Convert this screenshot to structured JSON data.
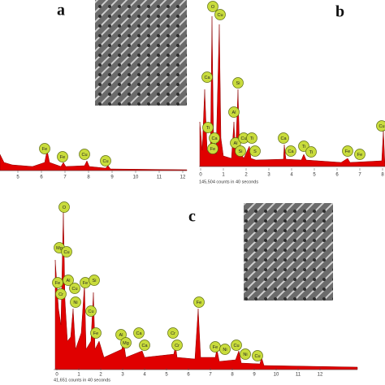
{
  "panels": [
    {
      "label": "a",
      "tags": [
        "Fe",
        "Fe",
        "Cu",
        "Cu"
      ],
      "x_ticks": [
        "5",
        "6",
        "7",
        "8",
        "9",
        "10",
        "11",
        "12"
      ]
    },
    {
      "label": "b",
      "tags": [
        "O",
        "Cu",
        "Ca",
        "Si",
        "Al",
        "Ti",
        "Ca",
        "Fe",
        "Al",
        "Cu",
        "Ti",
        "Si",
        "S",
        "Ca",
        "Ca",
        "Ti",
        "Ti",
        "Fe",
        "Fe",
        "Cu"
      ],
      "x_ticks": [
        "0",
        "1",
        "2",
        "3",
        "4",
        "5",
        "6",
        "7",
        "8"
      ],
      "caption": "145,504 counts in 40 seconds"
    },
    {
      "label": "c",
      "tags": [
        "O",
        "Mg",
        "Cu",
        "Fe",
        "Al",
        "Cr",
        "Cu",
        "Ni",
        "Fe",
        "Si",
        "Cu",
        "Fe",
        "Al",
        "Ca",
        "Mg",
        "Ca",
        "Cr",
        "Cr",
        "Fe",
        "Fe",
        "Ni",
        "Cu",
        "Ni",
        "Cu"
      ],
      "x_ticks": [
        "0",
        "1",
        "2",
        "3",
        "4",
        "5",
        "6",
        "7",
        "8",
        "9",
        "10",
        "11",
        "12"
      ],
      "caption": "41,651 counts in 40 seconds"
    }
  ]
}
